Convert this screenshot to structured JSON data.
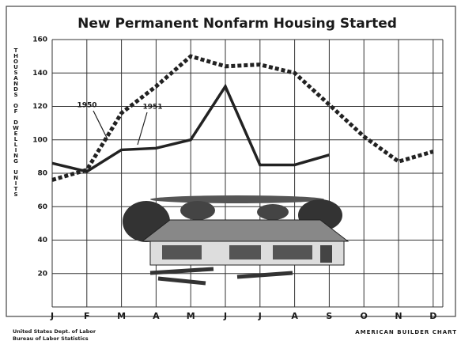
{
  "chart_data": {
    "type": "line",
    "title": "New Permanent Nonfarm Housing Started",
    "y_label": "THOUSANDS OF DWELLING UNITS",
    "categories": [
      "J",
      "F",
      "M",
      "A",
      "M",
      "J",
      "J",
      "A",
      "S",
      "O",
      "N",
      "D"
    ],
    "series": [
      {
        "name": "1950",
        "color": "#222222",
        "line_style": "dotted",
        "values": [
          76,
          82,
          116,
          132,
          150,
          144,
          145,
          140,
          121,
          102,
          87,
          93
        ]
      },
      {
        "name": "1951",
        "color": "#222222",
        "line_style": "solid",
        "values": [
          86,
          81,
          94,
          95,
          100,
          132,
          85,
          85,
          91,
          null,
          null,
          null
        ]
      }
    ],
    "ylim": [
      0,
      160
    ],
    "yticks": [
      20,
      40,
      60,
      80,
      100,
      120,
      140,
      160
    ],
    "grid": true,
    "source": [
      "United States Dept. of Labor",
      "Bureau of Labor Statistics"
    ],
    "credit": "AMERICAN BUILDER CHART"
  }
}
